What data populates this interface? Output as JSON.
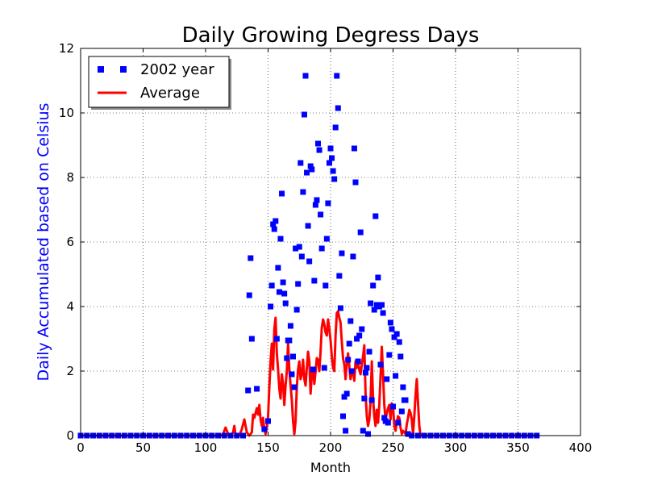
{
  "chart_data": {
    "type": "line",
    "title": "Daily Growing Degress Days",
    "xlabel": "Month",
    "ylabel": "Daily Accumulated based on Celsius",
    "xlim": [
      0,
      400
    ],
    "ylim": [
      0,
      12
    ],
    "xticks": [
      0,
      50,
      100,
      150,
      200,
      250,
      300,
      350,
      400
    ],
    "yticks": [
      0,
      2,
      4,
      6,
      8,
      10,
      12
    ],
    "grid": true,
    "legend": {
      "placement": "top-left"
    },
    "series": [
      {
        "name": "2002 year",
        "kind": "scatter",
        "marker": "square",
        "color": "#0000ff",
        "points": [
          [
            0,
            0
          ],
          [
            5,
            0
          ],
          [
            10,
            0
          ],
          [
            15,
            0
          ],
          [
            20,
            0
          ],
          [
            25,
            0
          ],
          [
            30,
            0
          ],
          [
            35,
            0
          ],
          [
            40,
            0
          ],
          [
            45,
            0
          ],
          [
            50,
            0
          ],
          [
            55,
            0
          ],
          [
            60,
            0
          ],
          [
            65,
            0
          ],
          [
            70,
            0
          ],
          [
            75,
            0
          ],
          [
            80,
            0
          ],
          [
            85,
            0
          ],
          [
            90,
            0
          ],
          [
            95,
            0
          ],
          [
            100,
            0
          ],
          [
            105,
            0
          ],
          [
            110,
            0
          ],
          [
            115,
            0
          ],
          [
            120,
            0
          ],
          [
            125,
            0
          ],
          [
            130,
            0
          ],
          [
            134,
            1.4
          ],
          [
            135,
            4.35
          ],
          [
            136,
            5.5
          ],
          [
            137,
            3.0
          ],
          [
            141,
            1.45
          ],
          [
            147,
            0.2
          ],
          [
            150,
            0.45
          ],
          [
            152,
            4.0
          ],
          [
            153,
            4.65
          ],
          [
            154,
            6.55
          ],
          [
            155,
            6.4
          ],
          [
            156,
            6.65
          ],
          [
            157,
            3.0
          ],
          [
            158,
            5.2
          ],
          [
            159,
            4.45
          ],
          [
            160,
            6.1
          ],
          [
            161,
            7.5
          ],
          [
            162,
            4.75
          ],
          [
            163,
            4.4
          ],
          [
            164,
            4.1
          ],
          [
            165,
            2.4
          ],
          [
            166,
            2.95
          ],
          [
            167,
            2.95
          ],
          [
            168,
            3.4
          ],
          [
            169,
            1.9
          ],
          [
            170,
            2.45
          ],
          [
            171,
            1.5
          ],
          [
            172,
            5.8
          ],
          [
            173,
            3.9
          ],
          [
            174,
            4.7
          ],
          [
            175,
            5.85
          ],
          [
            176,
            8.45
          ],
          [
            177,
            5.55
          ],
          [
            178,
            7.55
          ],
          [
            179,
            9.95
          ],
          [
            180,
            11.15
          ],
          [
            181,
            8.15
          ],
          [
            182,
            6.5
          ],
          [
            183,
            5.4
          ],
          [
            184,
            8.35
          ],
          [
            185,
            8.25
          ],
          [
            186,
            2.05
          ],
          [
            187,
            4.8
          ],
          [
            188,
            7.15
          ],
          [
            189,
            7.3
          ],
          [
            190,
            9.05
          ],
          [
            191,
            8.85
          ],
          [
            192,
            6.85
          ],
          [
            193,
            5.8
          ],
          [
            195,
            2.1
          ],
          [
            196,
            4.65
          ],
          [
            197,
            6.1
          ],
          [
            198,
            7.2
          ],
          [
            199,
            8.45
          ],
          [
            200,
            8.9
          ],
          [
            201,
            8.6
          ],
          [
            202,
            8.2
          ],
          [
            203,
            7.95
          ],
          [
            204,
            9.55
          ],
          [
            205,
            11.15
          ],
          [
            206,
            10.15
          ],
          [
            207,
            4.95
          ],
          [
            208,
            3.95
          ],
          [
            209,
            5.65
          ],
          [
            210,
            0.6
          ],
          [
            211,
            1.2
          ],
          [
            212,
            0.15
          ],
          [
            213,
            1.3
          ],
          [
            214,
            2.35
          ],
          [
            215,
            2.85
          ],
          [
            216,
            3.55
          ],
          [
            217,
            2.0
          ],
          [
            218,
            5.55
          ],
          [
            219,
            8.9
          ],
          [
            220,
            7.85
          ],
          [
            221,
            3.0
          ],
          [
            222,
            2.3
          ],
          [
            223,
            3.1
          ],
          [
            224,
            6.3
          ],
          [
            225,
            3.3
          ],
          [
            226,
            0.15
          ],
          [
            227,
            1.15
          ],
          [
            228,
            1.95
          ],
          [
            229,
            2.1
          ],
          [
            230,
            0.05
          ],
          [
            231,
            2.6
          ],
          [
            232,
            4.1
          ],
          [
            233,
            1.1
          ],
          [
            234,
            4.65
          ],
          [
            235,
            3.9
          ],
          [
            236,
            6.8
          ],
          [
            237,
            4.05
          ],
          [
            238,
            4.9
          ],
          [
            239,
            4.0
          ],
          [
            240,
            2.2
          ],
          [
            241,
            4.05
          ],
          [
            242,
            3.8
          ],
          [
            243,
            0.55
          ],
          [
            244,
            0.45
          ],
          [
            245,
            1.75
          ],
          [
            246,
            0.4
          ],
          [
            247,
            2.5
          ],
          [
            248,
            3.5
          ],
          [
            249,
            3.3
          ],
          [
            250,
            0.9
          ],
          [
            251,
            3.05
          ],
          [
            252,
            1.85
          ],
          [
            253,
            3.15
          ],
          [
            254,
            0.4
          ],
          [
            255,
            2.9
          ],
          [
            256,
            2.45
          ],
          [
            257,
            0.75
          ],
          [
            258,
            1.5
          ],
          [
            259,
            1.1
          ],
          [
            260,
            1.1
          ],
          [
            262,
            0.05
          ],
          [
            265,
            0
          ],
          [
            270,
            0
          ],
          [
            275,
            0
          ],
          [
            280,
            0
          ],
          [
            285,
            0
          ],
          [
            290,
            0
          ],
          [
            295,
            0
          ],
          [
            300,
            0
          ],
          [
            305,
            0
          ],
          [
            310,
            0
          ],
          [
            315,
            0
          ],
          [
            320,
            0
          ],
          [
            325,
            0
          ],
          [
            330,
            0
          ],
          [
            335,
            0
          ],
          [
            340,
            0
          ],
          [
            345,
            0
          ],
          [
            350,
            0
          ],
          [
            355,
            0
          ],
          [
            360,
            0
          ],
          [
            365,
            0
          ]
        ]
      },
      {
        "name": "Average",
        "kind": "line",
        "color": "#ff0000",
        "points": [
          [
            0,
            0
          ],
          [
            112,
            0
          ],
          [
            114,
            0.05
          ],
          [
            116,
            0.25
          ],
          [
            118,
            0.05
          ],
          [
            120,
            0
          ],
          [
            122,
            0.1
          ],
          [
            123,
            0.3
          ],
          [
            124,
            0
          ],
          [
            127,
            0
          ],
          [
            129,
            0.2
          ],
          [
            131,
            0.5
          ],
          [
            133,
            0.1
          ],
          [
            135,
            0
          ],
          [
            137,
            0.1
          ],
          [
            138,
            0.65
          ],
          [
            139,
            0.55
          ],
          [
            140,
            0.7
          ],
          [
            141,
            0.85
          ],
          [
            142,
            0.65
          ],
          [
            143,
            0.95
          ],
          [
            144,
            0.5
          ],
          [
            145,
            0.3
          ],
          [
            146,
            0.55
          ],
          [
            147,
            0.2
          ],
          [
            148,
            0.05
          ],
          [
            149,
            0.25
          ],
          [
            150,
            0.6
          ],
          [
            151,
            1.5
          ],
          [
            152,
            2.3
          ],
          [
            153,
            2.85
          ],
          [
            154,
            2.05
          ],
          [
            155,
            3.3
          ],
          [
            156,
            3.65
          ],
          [
            157,
            2.55
          ],
          [
            158,
            2.05
          ],
          [
            159,
            1.45
          ],
          [
            160,
            1.15
          ],
          [
            161,
            1.9
          ],
          [
            162,
            1.6
          ],
          [
            163,
            0.95
          ],
          [
            164,
            1.55
          ],
          [
            165,
            2.0
          ],
          [
            166,
            2.85
          ],
          [
            167,
            2.05
          ],
          [
            168,
            1.55
          ],
          [
            169,
            1.1
          ],
          [
            170,
            0.45
          ],
          [
            171,
            0.05
          ],
          [
            172,
            0.45
          ],
          [
            173,
            1.5
          ],
          [
            174,
            2.05
          ],
          [
            175,
            2.3
          ],
          [
            176,
            1.75
          ],
          [
            177,
            1.9
          ],
          [
            178,
            2.35
          ],
          [
            179,
            1.75
          ],
          [
            180,
            1.55
          ],
          [
            181,
            2.1
          ],
          [
            182,
            2.6
          ],
          [
            183,
            2.3
          ],
          [
            184,
            1.3
          ],
          [
            185,
            1.9
          ],
          [
            186,
            2.05
          ],
          [
            187,
            1.6
          ],
          [
            188,
            2.0
          ],
          [
            189,
            2.4
          ],
          [
            190,
            2.35
          ],
          [
            191,
            2.0
          ],
          [
            192,
            2.6
          ],
          [
            193,
            3.35
          ],
          [
            194,
            3.6
          ],
          [
            195,
            3.45
          ],
          [
            196,
            3.2
          ],
          [
            197,
            3.1
          ],
          [
            198,
            3.6
          ],
          [
            199,
            3.3
          ],
          [
            200,
            2.95
          ],
          [
            201,
            2.45
          ],
          [
            202,
            2.1
          ],
          [
            203,
            2.0
          ],
          [
            204,
            3.1
          ],
          [
            205,
            3.8
          ],
          [
            206,
            3.85
          ],
          [
            207,
            3.65
          ],
          [
            208,
            3.5
          ],
          [
            209,
            2.9
          ],
          [
            210,
            2.4
          ],
          [
            211,
            2.2
          ],
          [
            212,
            1.75
          ],
          [
            213,
            2.25
          ],
          [
            214,
            2.55
          ],
          [
            215,
            2.15
          ],
          [
            216,
            1.75
          ],
          [
            217,
            1.95
          ],
          [
            218,
            2.0
          ],
          [
            219,
            1.7
          ],
          [
            220,
            2.3
          ],
          [
            221,
            2.1
          ],
          [
            222,
            2.25
          ],
          [
            223,
            2.05
          ],
          [
            224,
            1.9
          ],
          [
            225,
            2.2
          ],
          [
            226,
            2.45
          ],
          [
            227,
            2.8
          ],
          [
            228,
            1.3
          ],
          [
            229,
            0.6
          ],
          [
            230,
            0.3
          ],
          [
            231,
            0.5
          ],
          [
            232,
            1.05
          ],
          [
            233,
            2.3
          ],
          [
            234,
            1.15
          ],
          [
            235,
            0.6
          ],
          [
            236,
            0.3
          ],
          [
            237,
            0.8
          ],
          [
            238,
            0.4
          ],
          [
            239,
            0.95
          ],
          [
            240,
            1.85
          ],
          [
            241,
            2.75
          ],
          [
            242,
            1.9
          ],
          [
            243,
            0.95
          ],
          [
            244,
            0.5
          ],
          [
            245,
            0.7
          ],
          [
            246,
            0.85
          ],
          [
            247,
            0.95
          ],
          [
            248,
            0.5
          ],
          [
            249,
            1.0
          ],
          [
            250,
            0.9
          ],
          [
            251,
            0.3
          ],
          [
            252,
            0.15
          ],
          [
            253,
            0.4
          ],
          [
            254,
            0.6
          ],
          [
            255,
            0.55
          ],
          [
            256,
            0.25
          ],
          [
            257,
            0.05
          ],
          [
            258,
            0.15
          ],
          [
            259,
            0.1
          ],
          [
            260,
            0.05
          ],
          [
            261,
            0.35
          ],
          [
            262,
            0.55
          ],
          [
            263,
            0.8
          ],
          [
            264,
            0.7
          ],
          [
            265,
            0.5
          ],
          [
            266,
            0.05
          ],
          [
            267,
            0.6
          ],
          [
            268,
            1.25
          ],
          [
            269,
            1.75
          ],
          [
            270,
            1.0
          ],
          [
            271,
            0.3
          ],
          [
            272,
            0
          ],
          [
            365,
            0
          ]
        ]
      }
    ]
  }
}
